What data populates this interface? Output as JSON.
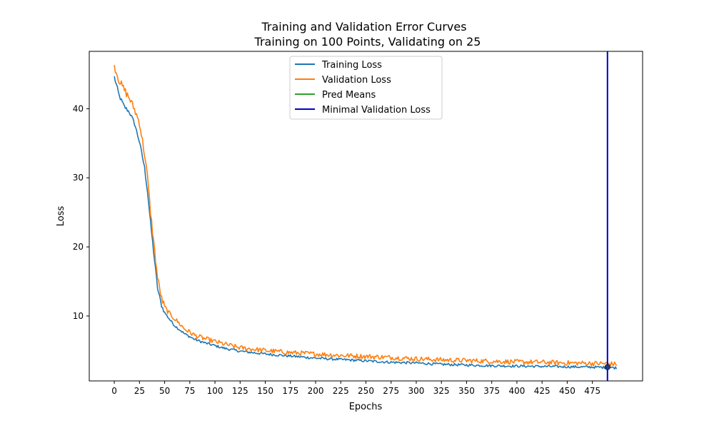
{
  "chart_data": {
    "type": "line",
    "title": "Training and Validation Error Curves",
    "subtitle": "Training on 100 Points, Validating on 25",
    "xlabel": "Epochs",
    "ylabel": "Loss",
    "xlim": [
      -24.9,
      524.9
    ],
    "ylim": [
      0.6,
      48.3
    ],
    "x_ticks": [
      "0",
      "25",
      "50",
      "75",
      "100",
      "125",
      "150",
      "175",
      "200",
      "225",
      "250",
      "275",
      "300",
      "325",
      "350",
      "375",
      "400",
      "425",
      "450",
      "475"
    ],
    "x_tick_values": [
      0,
      25,
      50,
      75,
      100,
      125,
      150,
      175,
      200,
      225,
      250,
      275,
      300,
      325,
      350,
      375,
      400,
      425,
      450,
      475
    ],
    "y_ticks": [
      "10",
      "20",
      "30",
      "40"
    ],
    "y_tick_values": [
      10,
      20,
      30,
      40
    ],
    "grid": false,
    "legend_position": "top-center",
    "series": [
      {
        "name": "Training Loss",
        "color": "#1f77b4",
        "points": [
          [
            0,
            44.6
          ],
          [
            5,
            41.8
          ],
          [
            10,
            40.3
          ],
          [
            15,
            39.5
          ],
          [
            20,
            37.9
          ],
          [
            25,
            35.2
          ],
          [
            30,
            31.5
          ],
          [
            33,
            28.0
          ],
          [
            36,
            23.5
          ],
          [
            40,
            18.0
          ],
          [
            43,
            14.0
          ],
          [
            47,
            11.5
          ],
          [
            50,
            10.5
          ],
          [
            55,
            9.5
          ],
          [
            60,
            8.6
          ],
          [
            70,
            7.4
          ],
          [
            80,
            6.6
          ],
          [
            90,
            6.1
          ],
          [
            100,
            5.7
          ],
          [
            110,
            5.3
          ],
          [
            125,
            4.9
          ],
          [
            150,
            4.5
          ],
          [
            175,
            4.2
          ],
          [
            200,
            3.9
          ],
          [
            225,
            3.7
          ],
          [
            250,
            3.5
          ],
          [
            275,
            3.3
          ],
          [
            300,
            3.2
          ],
          [
            325,
            3.0
          ],
          [
            350,
            2.9
          ],
          [
            375,
            2.8
          ],
          [
            400,
            2.75
          ],
          [
            425,
            2.7
          ],
          [
            450,
            2.65
          ],
          [
            475,
            2.6
          ],
          [
            490,
            2.55
          ],
          [
            499,
            2.5
          ]
        ],
        "noise": 0.18
      },
      {
        "name": "Validation Loss",
        "color": "#ff7f0e",
        "points": [
          [
            0,
            46.2
          ],
          [
            5,
            44.0
          ],
          [
            10,
            42.7
          ],
          [
            15,
            41.5
          ],
          [
            20,
            39.9
          ],
          [
            25,
            38.0
          ],
          [
            30,
            33.5
          ],
          [
            33,
            30.0
          ],
          [
            36,
            25.0
          ],
          [
            40,
            19.5
          ],
          [
            43,
            15.5
          ],
          [
            47,
            12.5
          ],
          [
            50,
            11.3
          ],
          [
            55,
            10.3
          ],
          [
            60,
            9.6
          ],
          [
            70,
            8.1
          ],
          [
            80,
            7.2
          ],
          [
            90,
            6.7
          ],
          [
            100,
            6.3
          ],
          [
            110,
            5.9
          ],
          [
            125,
            5.4
          ],
          [
            150,
            5.0
          ],
          [
            175,
            4.7
          ],
          [
            200,
            4.5
          ],
          [
            225,
            4.3
          ],
          [
            250,
            4.15
          ],
          [
            275,
            4.0
          ],
          [
            300,
            3.8
          ],
          [
            325,
            3.65
          ],
          [
            350,
            3.55
          ],
          [
            375,
            3.45
          ],
          [
            400,
            3.35
          ],
          [
            425,
            3.3
          ],
          [
            450,
            3.2
          ],
          [
            475,
            3.15
          ],
          [
            490,
            3.1
          ],
          [
            499,
            3.0
          ]
        ],
        "noise": 0.35
      },
      {
        "name": "Pred Means",
        "color": "#2ca02c",
        "points": []
      }
    ],
    "vline": {
      "name": "Minimal Validation Loss",
      "x": 490,
      "color": "#0000cd"
    },
    "marker": {
      "x": 490,
      "y": 2.6,
      "color": "#1f3a8a"
    }
  }
}
